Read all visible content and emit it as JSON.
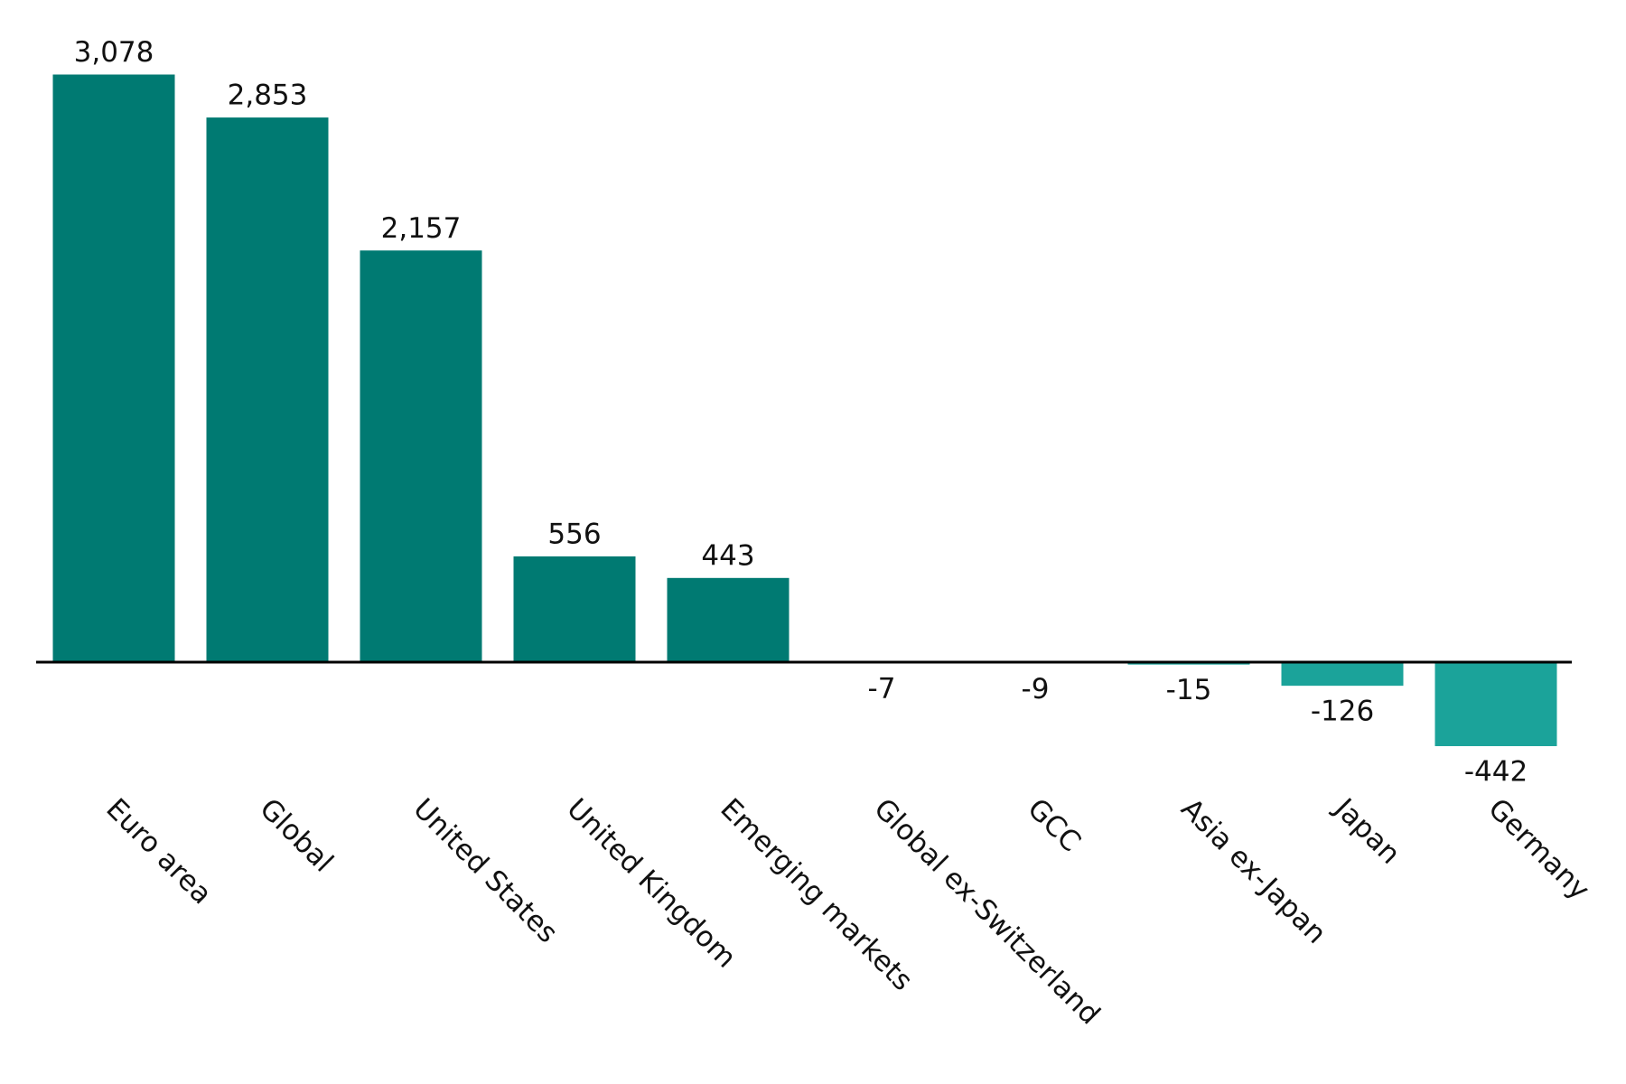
{
  "chart_data": {
    "type": "bar",
    "categories": [
      "Euro area",
      "Global",
      "United States",
      "United Kingdom",
      "Emerging markets",
      "Global ex-Switzerland",
      "GCC",
      "Asia ex-Japan",
      "Japan",
      "Germany"
    ],
    "values": [
      3078,
      2853,
      2157,
      556,
      443,
      -7,
      -9,
      -15,
      -126,
      -442
    ],
    "value_labels": [
      "3,078",
      "2,853",
      "2,157",
      "556",
      "443",
      "-7",
      "-9",
      "-15",
      "-126",
      "-442"
    ],
    "color": "#007a72",
    "negative_color": "#1ba39a"
  }
}
